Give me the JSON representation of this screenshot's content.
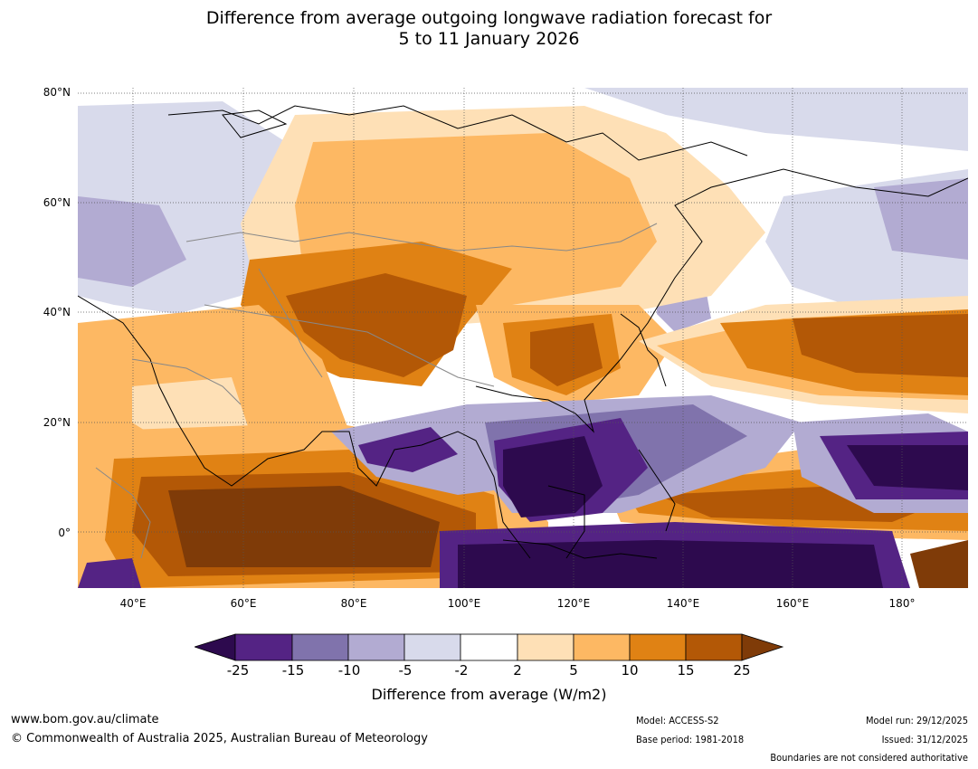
{
  "title": {
    "line1": "Difference from average outgoing longwave radiation forecast for",
    "line2": "5 to 11 January 2026"
  },
  "map": {
    "lat_labels": [
      "80°N",
      "60°N",
      "40°N",
      "20°N",
      "0°"
    ],
    "lon_labels": [
      "40°E",
      "60°E",
      "80°E",
      "100°E",
      "120°E",
      "140°E",
      "160°E",
      "180°"
    ]
  },
  "colorbar": {
    "ticks": [
      "-25",
      "-15",
      "-10",
      "-5",
      "-2",
      "2",
      "5",
      "10",
      "15",
      "25"
    ],
    "colors": {
      "below_min": "#2d0a4e",
      "b_-25_-15": "#542384",
      "b_-15_-10": "#8073ac",
      "b_-10_-5": "#b2abd2",
      "b_-5_-2": "#d8daeb",
      "b_-2_2": "#ffffff",
      "b_2_5": "#fee0b6",
      "b_5_10": "#fdb863",
      "b_10_15": "#e08214",
      "b_15_25": "#b35806",
      "above_max": "#7f3b08"
    },
    "label": "Difference from average (W/m2)"
  },
  "footer": {
    "website": "www.bom.gov.au/climate",
    "copyright": "© Commonwealth of Australia 2025, Australian Bureau of Meteorology",
    "model": "Model: ACCESS-S2",
    "base_period": "Base period: 1981-2018",
    "model_run": "Model run: 29/12/2025",
    "issued": "Issued: 31/12/2025",
    "disclaimer": "Boundaries are not considered authoritative"
  }
}
